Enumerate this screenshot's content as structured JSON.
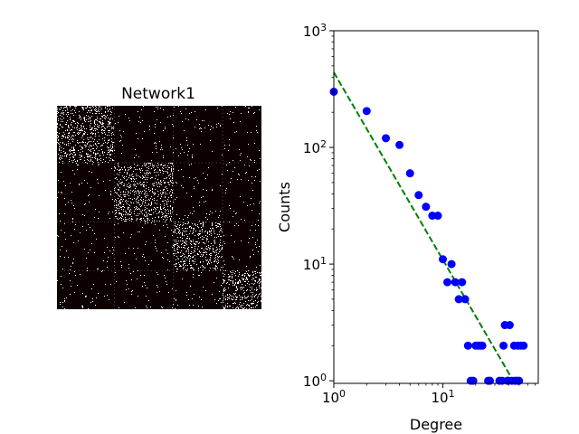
{
  "chart_data": [
    {
      "type": "heatmap",
      "title": "Network1",
      "description_values": {
        "blocks": [
          0,
          0.28,
          0.57,
          0.81,
          1.0
        ],
        "block_density": [
          [
            0.3,
            0.03,
            0.03,
            0.03
          ],
          [
            0.03,
            0.3,
            0.03,
            0.03
          ],
          [
            0.03,
            0.03,
            0.3,
            0.03
          ],
          [
            0.03,
            0.03,
            0.03,
            0.3
          ]
        ]
      },
      "colors": {
        "background": "#0d0000",
        "point": "#ffffff",
        "grid": "#808080"
      }
    },
    {
      "type": "scatter",
      "xlabel": "Degree",
      "ylabel": "Counts",
      "xscale": "log",
      "yscale": "log",
      "xlim": [
        1,
        75
      ],
      "ylim": [
        0.95,
        1000
      ],
      "xticks": [
        {
          "value": 1,
          "base": "10",
          "exp": "0"
        },
        {
          "value": 10,
          "base": "10",
          "exp": "1"
        }
      ],
      "yticks": [
        {
          "value": 1,
          "base": "10",
          "exp": "0"
        },
        {
          "value": 10,
          "base": "10",
          "exp": "1"
        },
        {
          "value": 100,
          "base": "10",
          "exp": "2"
        },
        {
          "value": 1000,
          "base": "10",
          "exp": "3"
        }
      ],
      "series": [
        {
          "kind": "scatter",
          "color": "#0000ff",
          "points": [
            [
              1,
              300
            ],
            [
              2,
              205
            ],
            [
              3,
              120
            ],
            [
              4,
              105
            ],
            [
              5,
              60
            ],
            [
              6,
              39
            ],
            [
              7,
              31
            ],
            [
              8,
              26
            ],
            [
              9,
              26
            ],
            [
              10,
              11
            ],
            [
              11,
              7
            ],
            [
              12,
              10
            ],
            [
              13,
              7
            ],
            [
              14,
              5
            ],
            [
              15,
              7
            ],
            [
              16,
              5
            ],
            [
              17,
              2
            ],
            [
              18,
              1
            ],
            [
              19,
              1
            ],
            [
              20,
              2
            ],
            [
              21,
              2
            ],
            [
              22,
              2
            ],
            [
              23,
              2
            ],
            [
              26,
              1
            ],
            [
              27,
              1
            ],
            [
              33,
              1
            ],
            [
              35,
              1
            ],
            [
              36,
              2
            ],
            [
              37,
              3
            ],
            [
              39,
              1
            ],
            [
              40,
              1
            ],
            [
              41,
              3
            ],
            [
              43,
              1
            ],
            [
              45,
              2
            ],
            [
              46,
              1
            ],
            [
              48,
              1
            ],
            [
              49,
              2
            ],
            [
              50,
              1
            ],
            [
              52,
              2
            ],
            [
              55,
              2
            ]
          ]
        },
        {
          "kind": "fit-line",
          "color": "#008000",
          "style": "dashed",
          "points": [
            [
              1,
              440
            ],
            [
              45,
              0.97
            ]
          ]
        }
      ]
    }
  ]
}
